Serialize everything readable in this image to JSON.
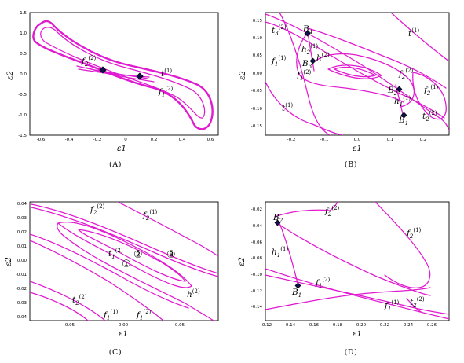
{
  "panels": {
    "A": {
      "caption": "(A)",
      "xlabel": "ε1",
      "ylabel": "ε2",
      "xticks": [
        "-0.6",
        "-0.4",
        "-0.2",
        "0",
        "0.2",
        "0.4",
        "0.6"
      ],
      "yticks": [
        "1.5",
        "1.0",
        "0.5",
        "0.0",
        "-0.5",
        "-1.0",
        "-1.5"
      ],
      "labels": {
        "f2": {
          "base": "f",
          "sub": "2",
          "sup": "(2)"
        },
        "t1": {
          "base": "t",
          "sub": "",
          "sup": "(1)"
        },
        "f1": {
          "base": "f",
          "sub": "1",
          "sup": "(2)"
        }
      }
    },
    "B": {
      "caption": "(B)",
      "xlabel": "ε1",
      "ylabel": "ε2",
      "xticks": [
        "-0.2",
        "-0.1",
        "0.0",
        "0.1",
        "0.2"
      ],
      "yticks": [
        "0.15",
        "0.10",
        "0.05",
        "0.00",
        "-0.05",
        "-0.10",
        "-0.15"
      ],
      "labels": {
        "t3": {
          "base": "t",
          "sub": "3",
          "sup": "(2)"
        },
        "B4": {
          "base": "B",
          "sub": "4",
          "sup": ""
        },
        "t1top": {
          "base": "t",
          "sub": "",
          "sup": "(1)"
        },
        "h2": {
          "base": "h",
          "sub": "2",
          "sup": "(1)"
        },
        "h": {
          "base": "h",
          "sub": "",
          "sup": "(2)"
        },
        "f1a": {
          "base": "f",
          "sub": "1",
          "sup": "(1)"
        },
        "B3": {
          "base": "B",
          "sub": "3",
          "sup": ""
        },
        "f1b": {
          "base": "f",
          "sub": "1",
          "sup": "(2)"
        },
        "f2a": {
          "base": "f",
          "sub": "2",
          "sup": "(2)"
        },
        "B2": {
          "base": "B",
          "sub": "2",
          "sup": ""
        },
        "f2b": {
          "base": "f",
          "sub": "2",
          "sup": "(1)"
        },
        "h1": {
          "base": "h",
          "sub": "1",
          "sup": "(1)"
        },
        "t1low": {
          "base": "t",
          "sub": "",
          "sup": "(1)"
        },
        "t2": {
          "base": "t",
          "sub": "2",
          "sup": "(2)"
        },
        "B1": {
          "base": "B",
          "sub": "1",
          "sup": ""
        }
      }
    },
    "C": {
      "caption": "(C)",
      "xlabel": "ε1",
      "ylabel": "ε2",
      "xticks": [
        "-0.05",
        "0.00",
        "0.05"
      ],
      "yticks": [
        "0.04",
        "0.03",
        "0.02",
        "0.01",
        "0.00",
        "-0.01",
        "-0.02",
        "-0.03",
        "-0.04"
      ],
      "labels": {
        "f2a": {
          "base": "f",
          "sub": "2",
          "sup": "(2)"
        },
        "f2b": {
          "base": "f",
          "sub": "2",
          "sup": "(1)"
        },
        "t1": {
          "base": "t",
          "sub": "1",
          "sup": "(2)"
        },
        "h": {
          "base": "h",
          "sub": "",
          "sup": "(2)"
        },
        "t2": {
          "base": "t",
          "sub": "2",
          "sup": "(2)"
        },
        "f1a": {
          "base": "f",
          "sub": "1",
          "sup": "(1)"
        },
        "f1b": {
          "base": "f",
          "sub": "1",
          "sup": "(2)"
        }
      },
      "regions": [
        "①",
        "②",
        "③"
      ]
    },
    "D": {
      "caption": "(D)",
      "xlabel": "ε1",
      "ylabel": "ε2",
      "xticks": [
        "0.12",
        "0.14",
        "0.16",
        "0.18",
        "0.20",
        "0.22",
        "0.24",
        "0.26"
      ],
      "yticks": [
        "-0.02",
        "-0.04",
        "-0.06",
        "-0.08",
        "-0.10",
        "-0.12",
        "-0.14"
      ],
      "labels": {
        "B2": {
          "base": "B",
          "sub": "2",
          "sup": ""
        },
        "f2a": {
          "base": "f",
          "sub": "2",
          "sup": "(2)"
        },
        "f2b": {
          "base": "f",
          "sub": "2",
          "sup": "(1)"
        },
        "h1": {
          "base": "h",
          "sub": "1",
          "sup": "(1)"
        },
        "f1": {
          "base": "f",
          "sub": "1",
          "sup": "(2)"
        },
        "B1": {
          "base": "B",
          "sub": "1",
          "sup": ""
        },
        "f1b": {
          "base": "f",
          "sub": "1",
          "sup": "(1)"
        },
        "t2": {
          "base": "t",
          "sub": "2",
          "sup": "(2)"
        }
      }
    }
  },
  "colors": {
    "curve": "#e01ad0",
    "marker": "#10104a",
    "frame": "#000000"
  }
}
